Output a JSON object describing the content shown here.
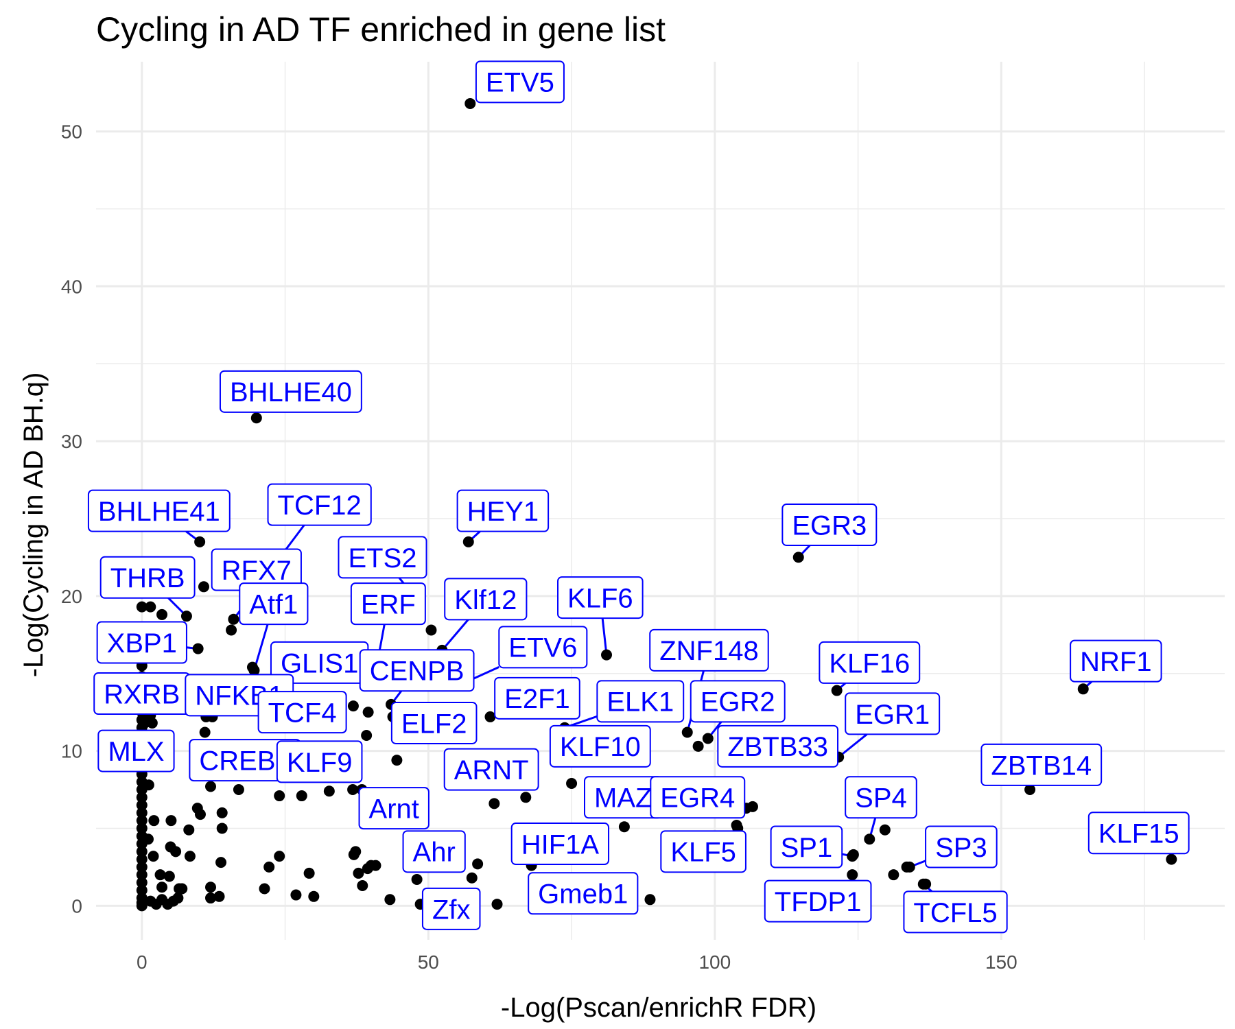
{
  "chart_data": {
    "type": "scatter",
    "title": "Cycling in AD TF enriched in gene list",
    "xlabel": "-Log(Pscan/enrichR FDR)",
    "ylabel": "-Log(Cycling in AD BH.q)",
    "xlim": [
      -8,
      189
    ],
    "ylim": [
      -2.2,
      54.5
    ],
    "x_ticks": [
      0,
      50,
      100,
      150
    ],
    "y_ticks": [
      0,
      10,
      20,
      30,
      40,
      50
    ],
    "grid": true,
    "colors": {
      "point": "#000000",
      "label": "#0000ff",
      "grid": "#ebebeb",
      "tick_text": "#4d4d4d"
    },
    "labeled_points": [
      {
        "label": "ETV5",
        "x": 57.3,
        "y": 51.8,
        "lx": 66,
        "ly": 53.2
      },
      {
        "label": "BHLHE40",
        "x": 20.0,
        "y": 31.5,
        "lx": 26,
        "ly": 33.2
      },
      {
        "label": "BHLHE41",
        "x": 10.1,
        "y": 23.5,
        "lx": 3,
        "ly": 25.5
      },
      {
        "label": "TCF12",
        "x": 16,
        "y": 18.5,
        "lx": 31,
        "ly": 25.9
      },
      {
        "label": "HEY1",
        "x": 57.0,
        "y": 23.5,
        "lx": 63,
        "ly": 25.5
      },
      {
        "label": "EGR3",
        "x": 114.6,
        "y": 22.5,
        "lx": 120,
        "ly": 24.6
      },
      {
        "label": "THRB",
        "x": 7.8,
        "y": 18.7,
        "lx": 1,
        "ly": 21.2
      },
      {
        "label": "RFX7",
        "x": 10.8,
        "y": 20.6,
        "lx": 20,
        "ly": 21.7
      },
      {
        "label": "ETS2",
        "x": 47.5,
        "y": 20,
        "lx": 42,
        "ly": 22.5
      },
      {
        "label": "Atf1",
        "x": 19.6,
        "y": 15.2,
        "lx": 23,
        "ly": 19.5
      },
      {
        "label": "ERF",
        "x": 40.5,
        "y": 14.5,
        "lx": 43,
        "ly": 19.5
      },
      {
        "label": "Klf12",
        "x": 52.4,
        "y": 16.5,
        "lx": 60,
        "ly": 19.8
      },
      {
        "label": "KLF6",
        "x": 81.1,
        "y": 16.2,
        "lx": 80,
        "ly": 19.9
      },
      {
        "label": "XBP1",
        "x": 9.8,
        "y": 16.6,
        "lx": 0,
        "ly": 17.0
      },
      {
        "label": "ETV6",
        "x": 55.7,
        "y": 14.3,
        "lx": 70,
        "ly": 16.7
      },
      {
        "label": "ZNF148",
        "x": 95.2,
        "y": 11.2,
        "lx": 99,
        "ly": 16.5
      },
      {
        "label": "GLIS1",
        "x": 35.5,
        "y": 15.2,
        "lx": 31,
        "ly": 15.7
      },
      {
        "label": "CENPB",
        "x": 43.5,
        "y": 13.0,
        "lx": 48,
        "ly": 15.2
      },
      {
        "label": "KLF16",
        "x": 121.3,
        "y": 13.9,
        "lx": 127,
        "ly": 15.7
      },
      {
        "label": "NRF1",
        "x": 164.3,
        "y": 14.0,
        "lx": 170,
        "ly": 15.8
      },
      {
        "label": "RXRB",
        "x": 1.5,
        "y": 12.3,
        "lx": 0,
        "ly": 13.7
      },
      {
        "label": "NFKB1",
        "x": 12.3,
        "y": 12.2,
        "lx": 17,
        "ly": 13.6
      },
      {
        "label": "E2F1",
        "x": 60.8,
        "y": 12.2,
        "lx": 69,
        "ly": 13.4
      },
      {
        "label": "ELK1",
        "x": 73.8,
        "y": 11.5,
        "lx": 87,
        "ly": 13.2
      },
      {
        "label": "EGR2",
        "x": 98.8,
        "y": 10.8,
        "lx": 104,
        "ly": 13.2
      },
      {
        "label": "TCF4",
        "x": 36.9,
        "y": 12.9,
        "lx": 28,
        "ly": 12.5
      },
      {
        "label": "ELF2",
        "x": 47.1,
        "y": 11.8,
        "lx": 51,
        "ly": 11.8
      },
      {
        "label": "EGR1",
        "x": 121.6,
        "y": 9.6,
        "lx": 131,
        "ly": 12.4
      },
      {
        "label": "MLX",
        "x": 0.2,
        "y": 9.4,
        "lx": -1,
        "ly": 10.0
      },
      {
        "label": "CREB3",
        "x": 11.5,
        "y": 9.0,
        "lx": 18,
        "ly": 9.4
      },
      {
        "label": "KLF9",
        "x": 31,
        "y": 9.2,
        "lx": 31,
        "ly": 9.3
      },
      {
        "label": "KLF10",
        "x": 73.8,
        "y": 10.4,
        "lx": 80,
        "ly": 10.3
      },
      {
        "label": "ZBTB33",
        "x": 108.0,
        "y": 10.5,
        "lx": 111,
        "ly": 10.3
      },
      {
        "label": "ARNT",
        "x": 62.0,
        "y": 8.5,
        "lx": 61,
        "ly": 8.8
      },
      {
        "label": "ZBTB14",
        "x": 155.0,
        "y": 7.5,
        "lx": 157,
        "ly": 9.1
      },
      {
        "label": "Arnt",
        "x": 38.4,
        "y": 7.5,
        "lx": 44,
        "ly": 6.3
      },
      {
        "label": "MAZ",
        "x": 84.2,
        "y": 5.1,
        "lx": 84,
        "ly": 7.0
      },
      {
        "label": "EGR4",
        "x": 105.5,
        "y": 6.3,
        "lx": 97,
        "ly": 7.0
      },
      {
        "label": "SP4",
        "x": 127.0,
        "y": 4.3,
        "lx": 129,
        "ly": 7.0
      },
      {
        "label": "KLF15",
        "x": 179.7,
        "y": 3.0,
        "lx": 174,
        "ly": 4.7
      },
      {
        "label": "HIF1A",
        "x": 68,
        "y": 3.0,
        "lx": 73,
        "ly": 4.0
      },
      {
        "label": "KLF5",
        "x": 104,
        "y": 5.0,
        "lx": 98,
        "ly": 3.5
      },
      {
        "label": "SP1",
        "x": 124.0,
        "y": 3.2,
        "lx": 116,
        "ly": 3.8
      },
      {
        "label": "SP3",
        "x": 134.0,
        "y": 2.5,
        "lx": 143,
        "ly": 3.8
      },
      {
        "label": "Ahr",
        "x": 48.0,
        "y": 1.7,
        "lx": 51,
        "ly": 3.5
      },
      {
        "label": "Gmeb1",
        "x": 77,
        "y": 1.5,
        "lx": 77,
        "ly": 0.8
      },
      {
        "label": "TFDP1",
        "x": 124.0,
        "y": 2.0,
        "lx": 118,
        "ly": 0.3
      },
      {
        "label": "TCFL5",
        "x": 136.4,
        "y": 1.4,
        "lx": 142,
        "ly": -0.4
      },
      {
        "label": "Zfx",
        "x": 48.6,
        "y": 0.1,
        "lx": 54,
        "ly": -0.2
      }
    ],
    "other_points": [
      [
        0,
        19.3
      ],
      [
        1.5,
        19.3
      ],
      [
        3.5,
        18.8
      ],
      [
        0,
        17.5
      ],
      [
        0,
        16.5
      ],
      [
        0,
        15.5
      ],
      [
        0,
        14.8
      ],
      [
        0,
        14.0
      ],
      [
        0,
        13.5
      ],
      [
        0,
        13.0
      ],
      [
        0,
        12.5
      ],
      [
        0,
        12.0
      ],
      [
        0.5,
        11.8
      ],
      [
        0,
        11.5
      ],
      [
        1.8,
        11.8
      ],
      [
        0,
        11.0
      ],
      [
        0,
        10.5
      ],
      [
        0,
        10.0
      ],
      [
        0,
        9.5
      ],
      [
        0,
        9.0
      ],
      [
        0,
        8.5
      ],
      [
        0,
        8.0
      ],
      [
        1.2,
        7.8
      ],
      [
        0,
        7.5
      ],
      [
        0,
        7.0
      ],
      [
        0,
        6.5
      ],
      [
        0,
        6.0
      ],
      [
        0,
        5.5
      ],
      [
        2.1,
        5.5
      ],
      [
        5.1,
        5.5
      ],
      [
        0,
        5.0
      ],
      [
        0,
        4.5
      ],
      [
        0,
        4.0
      ],
      [
        1.1,
        4.3
      ],
      [
        0,
        3.5
      ],
      [
        0,
        3.0
      ],
      [
        2.0,
        3.2
      ],
      [
        5.0,
        3.8
      ],
      [
        0,
        2.5
      ],
      [
        0,
        2.0
      ],
      [
        0,
        1.5
      ],
      [
        0,
        1.0
      ],
      [
        0,
        0.5
      ],
      [
        0,
        0.2
      ],
      [
        0,
        0
      ],
      [
        1.5,
        0.3
      ],
      [
        2.5,
        0.1
      ],
      [
        3.5,
        0.4
      ],
      [
        4.5,
        0.1
      ],
      [
        5.5,
        0.3
      ],
      [
        6.3,
        0.5
      ],
      [
        3.5,
        1.2
      ],
      [
        4.8,
        1.9
      ],
      [
        6.5,
        1.1
      ],
      [
        7.0,
        1.1
      ],
      [
        3.2,
        2.0
      ],
      [
        5.9,
        3.5
      ],
      [
        8.2,
        4.9
      ],
      [
        8.4,
        3.2
      ],
      [
        9.7,
        6.3
      ],
      [
        10.2,
        5.9
      ],
      [
        11.0,
        11.2
      ],
      [
        11.2,
        12.2
      ],
      [
        12.0,
        7.7
      ],
      [
        12.0,
        1.2
      ],
      [
        12.0,
        0.5
      ],
      [
        13.5,
        0.6
      ],
      [
        13.8,
        2.8
      ],
      [
        14.0,
        6.0
      ],
      [
        14.0,
        5.0
      ],
      [
        15.6,
        17.8
      ],
      [
        16.9,
        7.5
      ],
      [
        19.3,
        15.4
      ],
      [
        21.4,
        1.1
      ],
      [
        22.2,
        2.5
      ],
      [
        24.0,
        7.1
      ],
      [
        24.0,
        3.2
      ],
      [
        26.9,
        0.7
      ],
      [
        27.9,
        7.1
      ],
      [
        29.2,
        2.1
      ],
      [
        30.0,
        0.6
      ],
      [
        32.0,
        9.0
      ],
      [
        32.7,
        7.4
      ],
      [
        37.0,
        3.3
      ],
      [
        37.3,
        3.5
      ],
      [
        37.8,
        2.1
      ],
      [
        38.5,
        1.3
      ],
      [
        39.4,
        2.4
      ],
      [
        40.0,
        2.6
      ],
      [
        40.8,
        2.6
      ],
      [
        36.8,
        7.5
      ],
      [
        39.2,
        11.0
      ],
      [
        39.5,
        12.5
      ],
      [
        43.3,
        0.4
      ],
      [
        43.8,
        12.2
      ],
      [
        44.5,
        9.4
      ],
      [
        48.6,
        4.0
      ],
      [
        50.5,
        17.8
      ],
      [
        57.6,
        1.8
      ],
      [
        58.6,
        2.7
      ],
      [
        61.5,
        6.6
      ],
      [
        62.0,
        0.1
      ],
      [
        62.5,
        8.4
      ],
      [
        67.0,
        7.0
      ],
      [
        68.0,
        2.6
      ],
      [
        75.0,
        7.9
      ],
      [
        75.0,
        3.2
      ],
      [
        77.0,
        3.0
      ],
      [
        88.7,
        0.4
      ],
      [
        97.1,
        10.3
      ],
      [
        102.5,
        11.0
      ],
      [
        103.8,
        5.2
      ],
      [
        106.6,
        6.4
      ],
      [
        119.5,
        9.8
      ],
      [
        124.2,
        3.3
      ],
      [
        129.7,
        4.9
      ],
      [
        131.2,
        2.0
      ],
      [
        133.5,
        2.5
      ],
      [
        136.8,
        1.4
      ]
    ]
  }
}
